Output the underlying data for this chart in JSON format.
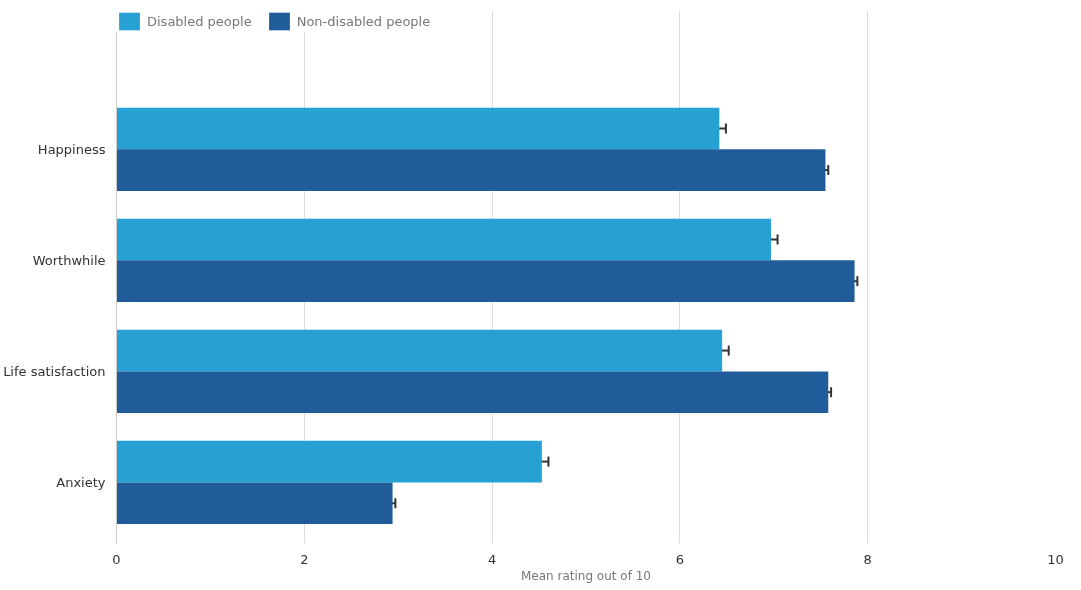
{
  "chart_data": {
    "type": "bar",
    "orientation": "horizontal",
    "categories": [
      "Happiness",
      "Worthwhile",
      "Life satisfaction",
      "Anxiety"
    ],
    "xlabel": "Mean rating out of 10",
    "xlim": [
      0,
      10
    ],
    "xticks": [
      0,
      2,
      4,
      6,
      8,
      10
    ],
    "grid": "x",
    "legend": "top left",
    "series": [
      {
        "name": "Disabled people",
        "color": "#27a1d3",
        "values": [
          6.42,
          6.97,
          6.45,
          4.53
        ],
        "errors": [
          0.07,
          0.07,
          0.07,
          0.07
        ]
      },
      {
        "name": "Non-disabled people",
        "color": "#1f5c99",
        "values": [
          7.55,
          7.86,
          7.58,
          2.94
        ],
        "errors": [
          0.03,
          0.03,
          0.03,
          0.03
        ]
      }
    ]
  }
}
